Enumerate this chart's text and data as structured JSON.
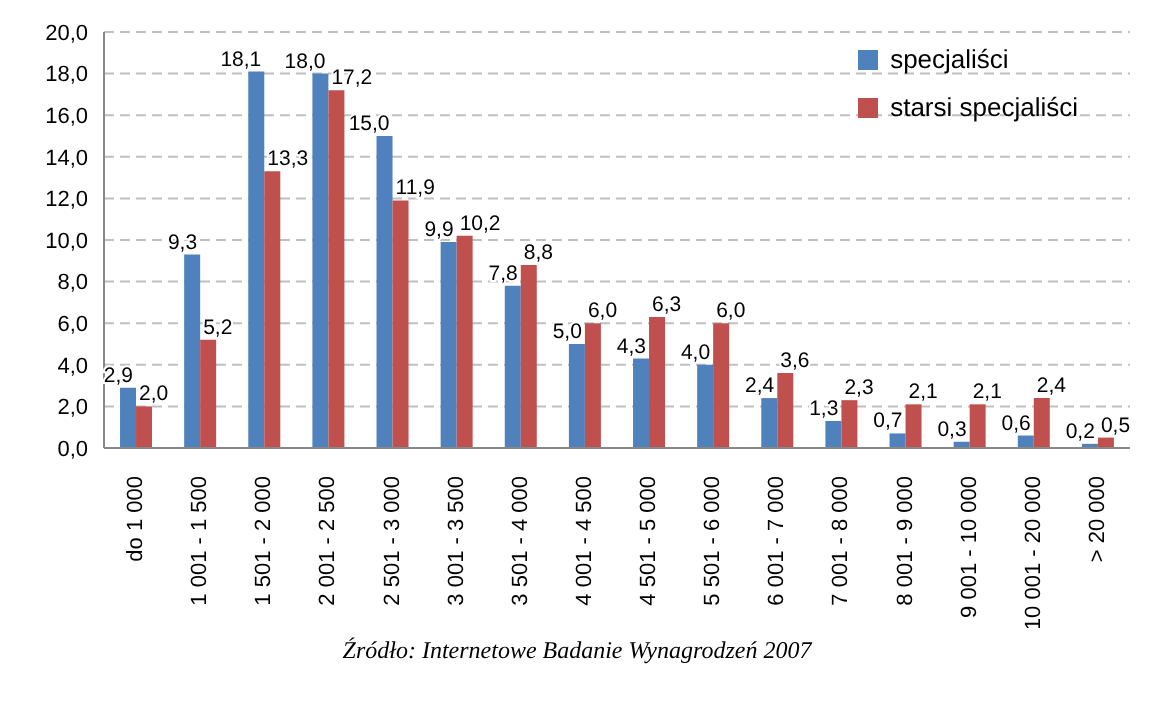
{
  "chart_data": {
    "type": "bar",
    "categories": [
      "do 1 000",
      "1 001 - 1 500",
      "1 501 - 2 000",
      "2 001 - 2 500",
      "2 501 - 3 000",
      "3 001 - 3 500",
      "3 501 - 4 000",
      "4 001 - 4 500",
      "4 501 - 5 000",
      "5 501 - 6 000",
      "6 001 - 7 000",
      "7 001 - 8 000",
      "8 001 - 9 000",
      "9 001 - 10 000",
      "10 001 - 20 000",
      "> 20 000"
    ],
    "series": [
      {
        "name": "specjaliści",
        "color": "#4f81bd",
        "values": [
          2.9,
          9.3,
          18.1,
          18.0,
          15.0,
          9.9,
          7.8,
          5.0,
          4.3,
          4.0,
          2.4,
          1.3,
          0.7,
          0.3,
          0.6,
          0.2
        ],
        "value_labels": [
          "2,9",
          "9,3",
          "18,1",
          "18,0",
          "15,0",
          "9,9",
          "7,8",
          "5,0",
          "4,3",
          "4,0",
          "2,4",
          "1,3",
          "0,7",
          "0,3",
          "0,6",
          "0,2"
        ]
      },
      {
        "name": "starsi specjaliści",
        "color": "#c0504d",
        "values": [
          2.0,
          5.2,
          13.3,
          17.2,
          11.9,
          10.2,
          8.8,
          6.0,
          6.3,
          6.0,
          3.6,
          2.3,
          2.1,
          2.1,
          2.4,
          0.5
        ],
        "value_labels": [
          "2,0",
          "5,2",
          "13,3",
          "17,2",
          "11,9",
          "10,2",
          "8,8",
          "6,0",
          "6,3",
          "6,0",
          "3,6",
          "2,3",
          "2,1",
          "2,1",
          "2,4",
          "0,5"
        ]
      }
    ],
    "ylim": [
      0,
      20
    ],
    "yticks": [
      {
        "value": 0,
        "label": "0,0"
      },
      {
        "value": 2,
        "label": "2,0"
      },
      {
        "value": 4,
        "label": "4,0"
      },
      {
        "value": 6,
        "label": "6,0"
      },
      {
        "value": 8,
        "label": "8,0"
      },
      {
        "value": 10,
        "label": "10,0"
      },
      {
        "value": 12,
        "label": "12,0"
      },
      {
        "value": 14,
        "label": "14,0"
      },
      {
        "value": 16,
        "label": "16,0"
      },
      {
        "value": 18,
        "label": "18,0"
      },
      {
        "value": 20,
        "label": "20,0"
      }
    ],
    "grid": "y",
    "legend": "top right",
    "annotations": [
      "Źródło: Internetowe Badanie Wynagrodzeń 2007"
    ]
  }
}
